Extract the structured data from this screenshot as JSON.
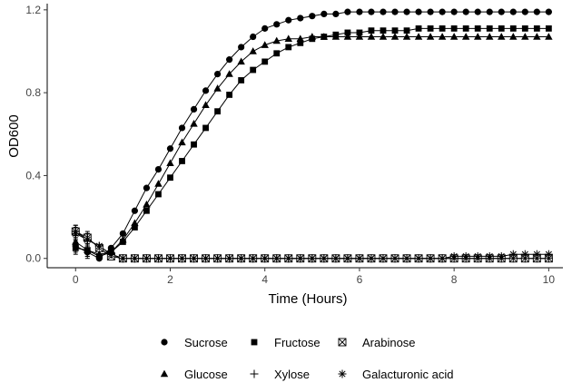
{
  "chart_data": {
    "type": "line",
    "xlabel": "Time (Hours)",
    "ylabel": "OD600",
    "xlim": [
      -0.6,
      10.3
    ],
    "ylim": [
      -0.045,
      1.23
    ],
    "x_ticks": [
      0,
      2,
      4,
      6,
      8,
      10
    ],
    "x_tick_labels": [
      "0",
      "2",
      "4",
      "6",
      "8",
      "10"
    ],
    "y_ticks": [
      0.0,
      0.4,
      0.8,
      1.2
    ],
    "y_tick_labels": [
      "0.0",
      "0.4",
      "0.8",
      "1.2"
    ],
    "grid": false,
    "legend_position": "bottom",
    "x": [
      0,
      0.25,
      0.5,
      0.75,
      1.0,
      1.25,
      1.5,
      1.75,
      2.0,
      2.25,
      2.5,
      2.75,
      3.0,
      3.25,
      3.5,
      3.75,
      4.0,
      4.25,
      4.5,
      4.75,
      5.0,
      5.25,
      5.5,
      5.75,
      6.0,
      6.25,
      6.5,
      6.75,
      7.0,
      7.25,
      7.5,
      7.75,
      8.0,
      8.25,
      8.5,
      8.75,
      9.0,
      9.25,
      9.5,
      9.75,
      10.0
    ],
    "series": [
      {
        "name": "Sucrose",
        "marker": "circle",
        "values": [
          0.06,
          0.03,
          0.0,
          0.05,
          0.12,
          0.23,
          0.34,
          0.43,
          0.53,
          0.63,
          0.72,
          0.81,
          0.89,
          0.96,
          1.02,
          1.07,
          1.11,
          1.13,
          1.15,
          1.16,
          1.17,
          1.18,
          1.18,
          1.19,
          1.19,
          1.19,
          1.19,
          1.19,
          1.19,
          1.19,
          1.19,
          1.19,
          1.19,
          1.19,
          1.19,
          1.19,
          1.19,
          1.19,
          1.19,
          1.19,
          1.19
        ]
      },
      {
        "name": "Fructose",
        "marker": "square",
        "values": [
          0.05,
          0.04,
          0.01,
          0.03,
          0.08,
          0.15,
          0.23,
          0.31,
          0.39,
          0.47,
          0.55,
          0.63,
          0.71,
          0.79,
          0.86,
          0.91,
          0.95,
          0.99,
          1.02,
          1.04,
          1.06,
          1.07,
          1.08,
          1.09,
          1.09,
          1.1,
          1.1,
          1.1,
          1.1,
          1.11,
          1.11,
          1.11,
          1.11,
          1.11,
          1.11,
          1.11,
          1.11,
          1.11,
          1.11,
          1.11,
          1.11
        ]
      },
      {
        "name": "Arabinose",
        "marker": "boxx",
        "values": [
          0.13,
          0.1,
          0.05,
          0.01,
          0.0,
          0.0,
          0.0,
          0.0,
          0.0,
          0.0,
          0.0,
          0.0,
          0.0,
          0.0,
          0.0,
          0.0,
          0.0,
          0.0,
          0.0,
          0.0,
          0.0,
          0.0,
          0.0,
          0.0,
          0.0,
          0.0,
          0.0,
          0.0,
          0.0,
          0.0,
          0.0,
          0.0,
          0.0,
          0.0,
          0.0,
          0.0,
          0.0,
          0.0,
          0.0,
          0.0,
          0.0
        ]
      },
      {
        "name": "Glucose",
        "marker": "triangle",
        "values": [
          0.08,
          0.04,
          0.02,
          0.03,
          0.09,
          0.17,
          0.26,
          0.36,
          0.46,
          0.56,
          0.65,
          0.74,
          0.82,
          0.89,
          0.95,
          1.0,
          1.03,
          1.05,
          1.06,
          1.06,
          1.07,
          1.07,
          1.07,
          1.07,
          1.07,
          1.07,
          1.07,
          1.07,
          1.07,
          1.07,
          1.07,
          1.07,
          1.07,
          1.07,
          1.07,
          1.07,
          1.07,
          1.07,
          1.07,
          1.07,
          1.07
        ]
      },
      {
        "name": "Xylose",
        "marker": "plus",
        "values": [
          0.13,
          0.09,
          0.06,
          0.02,
          0.0,
          0.0,
          0.0,
          0.0,
          0.0,
          0.0,
          0.0,
          0.0,
          0.0,
          0.0,
          0.0,
          0.0,
          0.0,
          0.0,
          0.0,
          0.0,
          0.0,
          0.0,
          0.0,
          0.0,
          0.0,
          0.0,
          0.0,
          0.0,
          0.0,
          0.0,
          0.0,
          0.0,
          0.0,
          0.0,
          0.0,
          0.0,
          0.0,
          0.0,
          0.0,
          0.0,
          0.0
        ]
      },
      {
        "name": "Galacturonic acid",
        "marker": "asterisk",
        "values": [
          0.12,
          0.09,
          0.06,
          0.02,
          0.0,
          0.0,
          0.0,
          0.0,
          0.0,
          0.0,
          0.0,
          0.0,
          0.0,
          0.0,
          0.0,
          0.0,
          0.0,
          0.0,
          0.0,
          0.0,
          0.0,
          0.0,
          0.0,
          0.0,
          0.0,
          0.0,
          0.0,
          0.0,
          0.0,
          0.0,
          0.0,
          0.0,
          0.01,
          0.01,
          0.01,
          0.01,
          0.01,
          0.02,
          0.02,
          0.02,
          0.02
        ]
      }
    ]
  }
}
